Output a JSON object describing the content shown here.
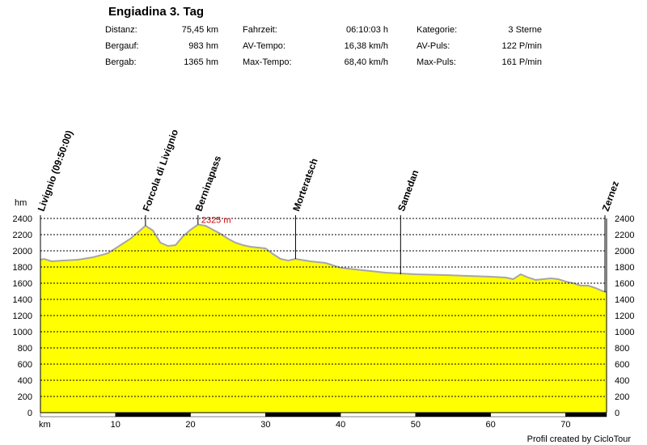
{
  "header": {
    "title": "Engiadina 3. Tag",
    "stats": [
      [
        {
          "label": "Distanz:",
          "value": "75,45 km"
        },
        {
          "label": "Fahrzeit:",
          "value": "06:10:03 h"
        },
        {
          "label": "Kategorie:",
          "value": "3 Sterne"
        }
      ],
      [
        {
          "label": "Bergauf:",
          "value": "983 hm"
        },
        {
          "label": "AV-Tempo:",
          "value": "16,38 km/h"
        },
        {
          "label": "AV-Puls:",
          "value": "122 P/min"
        }
      ],
      [
        {
          "label": "Bergab:",
          "value": "1365 hm"
        },
        {
          "label": "Max-Tempo:",
          "value": "68,40 km/h"
        },
        {
          "label": "Max-Puls:",
          "value": "161 P/min"
        }
      ]
    ]
  },
  "chart_data": {
    "type": "area",
    "ylabel": "hm",
    "xlabel": "km",
    "ylim": [
      0,
      2400
    ],
    "xlim": [
      0,
      75.45
    ],
    "yticks": [
      0,
      200,
      400,
      600,
      800,
      1000,
      1200,
      1400,
      1600,
      1800,
      2000,
      2200,
      2400
    ],
    "yticks_labels": [
      "0",
      "200",
      "400",
      "600",
      "800",
      "1000",
      "1200",
      "1400",
      "1600",
      "1800",
      "2000",
      "2200",
      "2400"
    ],
    "xticks": [
      10,
      20,
      30,
      40,
      50,
      60,
      70
    ],
    "xticks_labels": [
      "10",
      "20",
      "30",
      "40",
      "50",
      "60",
      "70"
    ],
    "grid": true,
    "fill_color": "#ffff00",
    "line_color": "#a6a6a6",
    "x": [
      0,
      0.5,
      1.5,
      3,
      5,
      7,
      9,
      10.5,
      12,
      13,
      14,
      15,
      16,
      17,
      18,
      19,
      20,
      21,
      22,
      23,
      24,
      25,
      26,
      27,
      28,
      29,
      30,
      31,
      32,
      33,
      34,
      36,
      38,
      40,
      43,
      46,
      50,
      54,
      57,
      60,
      62,
      63,
      64,
      65,
      66,
      68,
      69,
      70,
      71,
      72,
      73,
      74,
      75,
      75.45
    ],
    "y": [
      1890,
      1900,
      1870,
      1880,
      1890,
      1920,
      1970,
      2060,
      2150,
      2230,
      2310,
      2250,
      2100,
      2060,
      2070,
      2180,
      2260,
      2325,
      2310,
      2260,
      2210,
      2150,
      2100,
      2070,
      2050,
      2040,
      2030,
      1960,
      1900,
      1880,
      1900,
      1870,
      1850,
      1790,
      1760,
      1730,
      1710,
      1700,
      1690,
      1680,
      1670,
      1650,
      1710,
      1670,
      1640,
      1660,
      1650,
      1620,
      1600,
      1570,
      1570,
      1540,
      1500,
      1490
    ],
    "waypoints": [
      {
        "name": "Livignio (09:50:00)",
        "km": 0
      },
      {
        "name": "Forcola di Livignio",
        "km": 14
      },
      {
        "name": "Berninapass",
        "km": 21
      },
      {
        "name": "Morteratsch",
        "km": 34
      },
      {
        "name": "Samedan",
        "km": 48
      },
      {
        "name": "Zernez",
        "km": 75.45
      }
    ],
    "annotations": [
      {
        "text": "2325 m",
        "km": 21,
        "hm": 2325,
        "color": "#cc0000"
      }
    ]
  },
  "footer": {
    "credit": "Profil created by CicloTour"
  }
}
